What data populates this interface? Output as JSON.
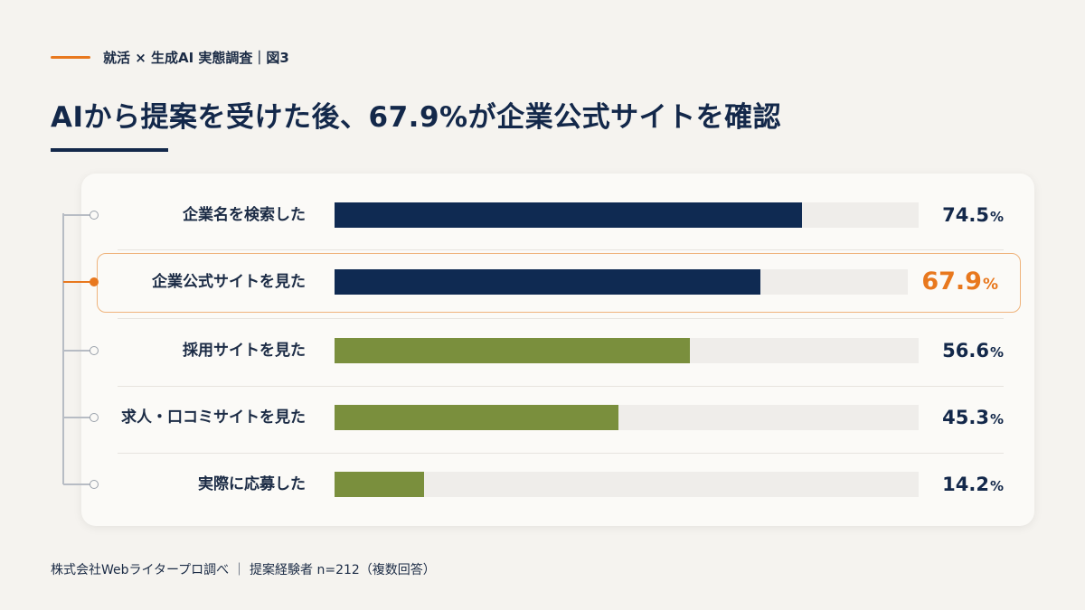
{
  "header": {
    "eyebrow": "就活 × 生成AI 実態調査｜図3",
    "title": "AIから提案を受けた後、67.9%が企業公式サイトを確認"
  },
  "colors": {
    "navy": "#0f2a52",
    "olive": "#7a8f3d",
    "accent": "#e8781e",
    "track": "#efedea"
  },
  "chart_data": {
    "type": "bar",
    "orientation": "horizontal",
    "categories": [
      "企業名を検索した",
      "企業公式サイトを見た",
      "採用サイトを見た",
      "求人・口コミサイトを見た",
      "実際に応募した"
    ],
    "values": [
      74.5,
      67.9,
      56.6,
      45.3,
      14.2
    ],
    "value_labels": [
      "74.5",
      "67.9",
      "56.6",
      "45.3",
      "14.2"
    ],
    "unit": "%",
    "bar_colors": [
      "#0f2a52",
      "#0f2a52",
      "#7a8f3d",
      "#7a8f3d",
      "#7a8f3d"
    ],
    "highlight_index": 1,
    "xlim": [
      0,
      100
    ],
    "grid": false
  },
  "footer": {
    "source": "株式会社Webライタープロ調べ ｜ 提案経験者 n=212（複数回答）"
  }
}
